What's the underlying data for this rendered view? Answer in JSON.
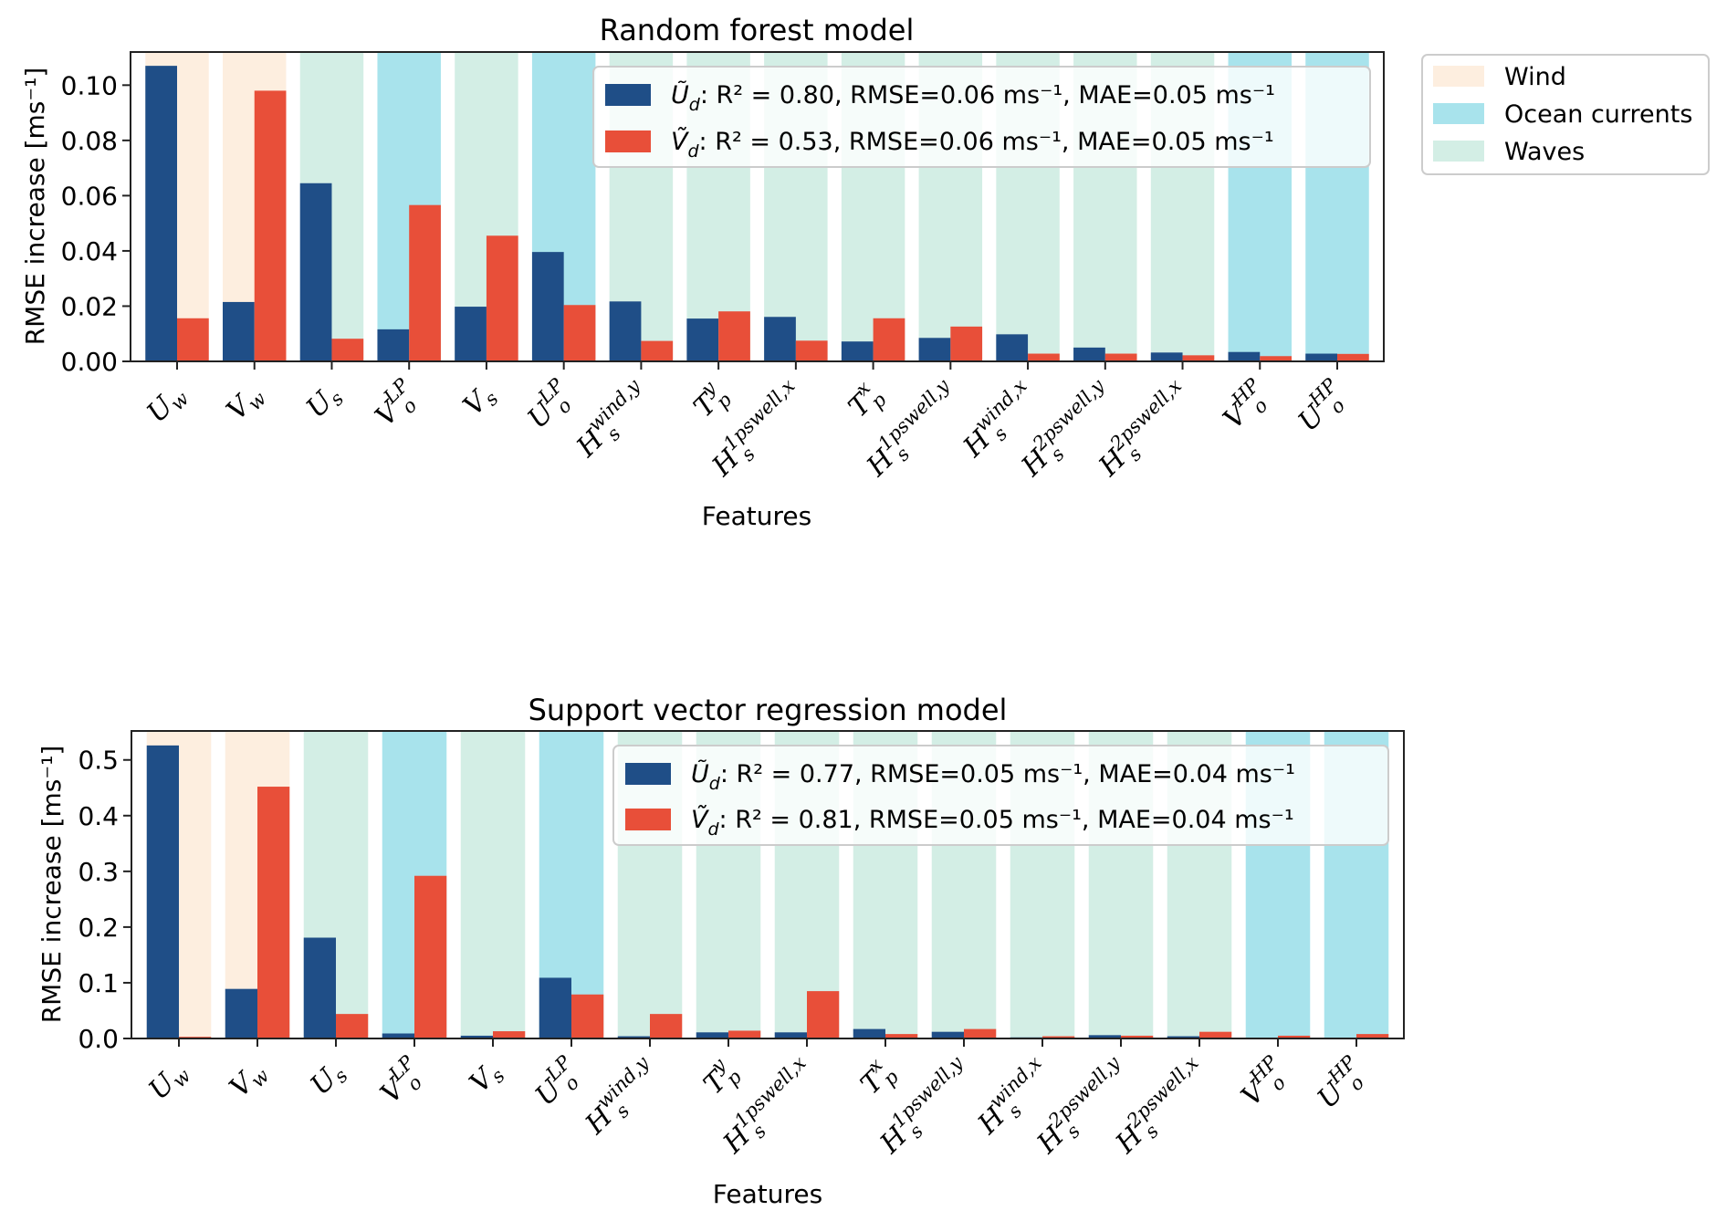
{
  "colors": {
    "U_d": "#1f4e87",
    "V_d": "#e84f39",
    "Wind": "#fdeedf",
    "Ocean currents": "#a8e3ec",
    "Waves": "#d3eee5"
  },
  "category_legend": {
    "entries": [
      "Wind",
      "Ocean currents",
      "Waves"
    ]
  },
  "chart_data": [
    {
      "type": "bar",
      "title": "Random forest model",
      "xlabel": "Features",
      "ylabel": "RMSE increase [ms⁻¹]",
      "ylim": [
        0,
        0.112
      ],
      "yticks": [
        0.0,
        0.02,
        0.04,
        0.06,
        0.08,
        0.1
      ],
      "ytick_labels": [
        "0.00",
        "0.02",
        "0.04",
        "0.06",
        "0.08",
        "0.10"
      ],
      "legend_position": "top-right (inside)",
      "categories": [
        {
          "base": "U",
          "sub": "w",
          "sup": "",
          "group": "Wind"
        },
        {
          "base": "V",
          "sub": "w",
          "sup": "",
          "group": "Wind"
        },
        {
          "base": "U",
          "sub": "s",
          "sup": "",
          "group": "Waves"
        },
        {
          "base": "V",
          "sub": "o",
          "sup": "LP",
          "group": "Ocean currents"
        },
        {
          "base": "V",
          "sub": "s",
          "sup": "",
          "group": "Waves"
        },
        {
          "base": "U",
          "sub": "o",
          "sup": "LP",
          "group": "Ocean currents"
        },
        {
          "base": "H",
          "sub": "s",
          "sup": "wind,y",
          "group": "Waves"
        },
        {
          "base": "T",
          "sub": "p",
          "sup": "y",
          "group": "Waves"
        },
        {
          "base": "H",
          "sub": "s",
          "sup": "1pswell,x",
          "group": "Waves"
        },
        {
          "base": "T",
          "sub": "p",
          "sup": "x",
          "group": "Waves"
        },
        {
          "base": "H",
          "sub": "s",
          "sup": "1pswell,y",
          "group": "Waves"
        },
        {
          "base": "H",
          "sub": "s",
          "sup": "wind,x",
          "group": "Waves"
        },
        {
          "base": "H",
          "sub": "s",
          "sup": "2pswell,y",
          "group": "Waves"
        },
        {
          "base": "H",
          "sub": "s",
          "sup": "2pswell,x",
          "group": "Waves"
        },
        {
          "base": "V",
          "sub": "o",
          "sup": "HP",
          "group": "Ocean currents"
        },
        {
          "base": "U",
          "sub": "o",
          "sup": "HP",
          "group": "Ocean currents"
        }
      ],
      "series": [
        {
          "name": "U_d",
          "label": {
            "sym": "Ũ",
            "sub": "d",
            "text": ": R² = 0.80, RMSE=0.06 ms⁻¹, MAE=0.05 ms⁻¹"
          },
          "values": [
            0.107,
            0.0215,
            0.0645,
            0.0116,
            0.0198,
            0.0396,
            0.0217,
            0.0155,
            0.0161,
            0.0072,
            0.0085,
            0.0098,
            0.005,
            0.0032,
            0.0034,
            0.0028
          ]
        },
        {
          "name": "V_d",
          "label": {
            "sym": "Ṽ",
            "sub": "d",
            "text": ": R² = 0.53, RMSE=0.06 ms⁻¹, MAE=0.05 ms⁻¹"
          },
          "values": [
            0.0156,
            0.098,
            0.0082,
            0.0566,
            0.0455,
            0.0204,
            0.0074,
            0.0181,
            0.0075,
            0.0156,
            0.0126,
            0.0028,
            0.0028,
            0.0022,
            0.0019,
            0.0027
          ]
        }
      ]
    },
    {
      "type": "bar",
      "title": "Support vector regression model",
      "xlabel": "Features",
      "ylabel": "RMSE increase [ms⁻¹]",
      "ylim": [
        0,
        0.552
      ],
      "yticks": [
        0.0,
        0.1,
        0.2,
        0.3,
        0.4,
        0.5
      ],
      "ytick_labels": [
        "0.0",
        "0.1",
        "0.2",
        "0.3",
        "0.4",
        "0.5"
      ],
      "legend_position": "top-right (inside)",
      "categories": [
        {
          "base": "U",
          "sub": "w",
          "sup": "",
          "group": "Wind"
        },
        {
          "base": "V",
          "sub": "w",
          "sup": "",
          "group": "Wind"
        },
        {
          "base": "U",
          "sub": "s",
          "sup": "",
          "group": "Waves"
        },
        {
          "base": "V",
          "sub": "o",
          "sup": "LP",
          "group": "Ocean currents"
        },
        {
          "base": "V",
          "sub": "s",
          "sup": "",
          "group": "Waves"
        },
        {
          "base": "U",
          "sub": "o",
          "sup": "LP",
          "group": "Ocean currents"
        },
        {
          "base": "H",
          "sub": "s",
          "sup": "wind,y",
          "group": "Waves"
        },
        {
          "base": "T",
          "sub": "p",
          "sup": "y",
          "group": "Waves"
        },
        {
          "base": "H",
          "sub": "s",
          "sup": "1pswell,x",
          "group": "Waves"
        },
        {
          "base": "T",
          "sub": "p",
          "sup": "x",
          "group": "Waves"
        },
        {
          "base": "H",
          "sub": "s",
          "sup": "1pswell,y",
          "group": "Waves"
        },
        {
          "base": "H",
          "sub": "s",
          "sup": "wind,x",
          "group": "Waves"
        },
        {
          "base": "H",
          "sub": "s",
          "sup": "2pswell,y",
          "group": "Waves"
        },
        {
          "base": "H",
          "sub": "s",
          "sup": "2pswell,x",
          "group": "Waves"
        },
        {
          "base": "V",
          "sub": "o",
          "sup": "HP",
          "group": "Ocean currents"
        },
        {
          "base": "U",
          "sub": "o",
          "sup": "HP",
          "group": "Ocean currents"
        }
      ],
      "series": [
        {
          "name": "U_d",
          "label": {
            "sym": "Ũ",
            "sub": "d",
            "text": ": R² = 0.77, RMSE=0.05 ms⁻¹, MAE=0.04 ms⁻¹"
          },
          "values": [
            0.526,
            0.089,
            0.181,
            0.009,
            0.005,
            0.109,
            0.004,
            0.011,
            0.011,
            0.017,
            0.012,
            0.002,
            0.006,
            0.004,
            0.001,
            0.001
          ]
        },
        {
          "name": "V_d",
          "label": {
            "sym": "Ṽ",
            "sub": "d",
            "text": ": R² = 0.81, RMSE=0.05 ms⁻¹, MAE=0.04 ms⁻¹"
          },
          "values": [
            0.003,
            0.452,
            0.044,
            0.292,
            0.013,
            0.079,
            0.044,
            0.014,
            0.085,
            0.008,
            0.017,
            0.004,
            0.005,
            0.012,
            0.005,
            0.008
          ]
        }
      ]
    }
  ]
}
